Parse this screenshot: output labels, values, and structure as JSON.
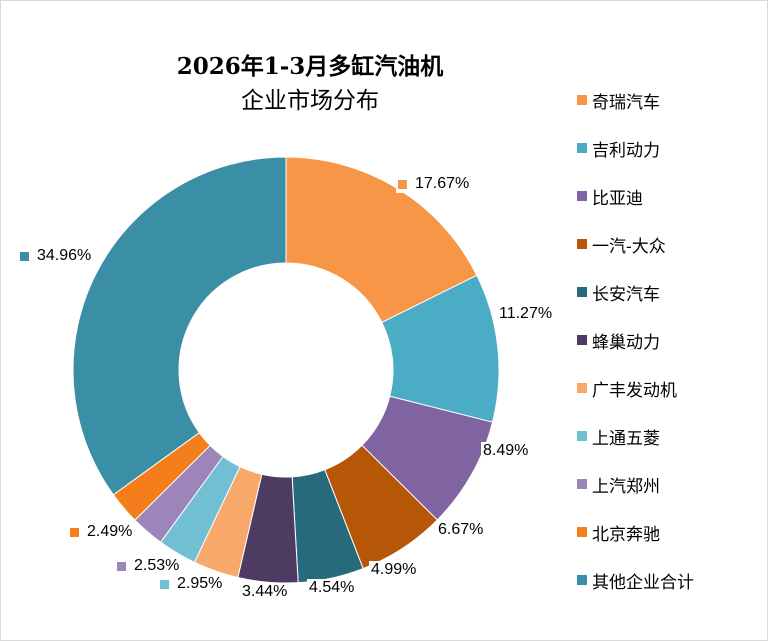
{
  "chart_data": {
    "type": "pie",
    "variant": "doughnut",
    "title": "2026年1-3月多缸汽油机企业市场分布",
    "title_lines": [
      "2026年1-3月多缸汽油机",
      "企业市场分布"
    ],
    "categories": [
      "奇瑞汽车",
      "吉利动力",
      "比亚迪",
      "一汽-大众",
      "长安汽车",
      "蜂巢动力",
      "广丰发动机",
      "上通五菱",
      "上汽郑州",
      "北京奔驰",
      "其他企业合计"
    ],
    "values": [
      17.67,
      11.27,
      8.49,
      6.67,
      4.99,
      4.54,
      3.44,
      2.95,
      2.53,
      2.49,
      34.96
    ],
    "labels": [
      "17.67%",
      "11.27%",
      "8.49%",
      "6.67%",
      "4.99%",
      "4.54%",
      "3.44%",
      "2.95%",
      "2.53%",
      "2.49%",
      "34.96%"
    ],
    "colors": [
      "#f79646",
      "#4bacc6",
      "#8064a2",
      "#b65708",
      "#276a7c",
      "#4d3b62",
      "#f9a86c",
      "#70bfd3",
      "#9c85b9",
      "#f57e1c",
      "#3a8ea5"
    ],
    "unit": "%",
    "legend_position": "right",
    "start_angle_deg": 0
  }
}
